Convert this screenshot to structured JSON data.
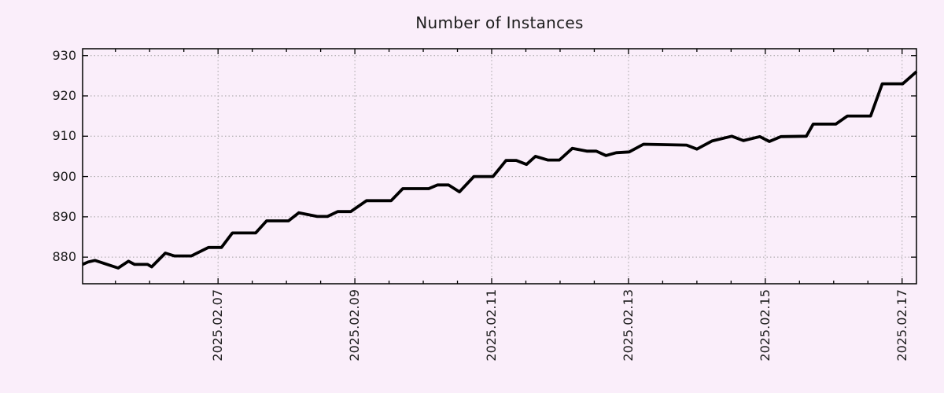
{
  "page": {
    "background": "#faeefa"
  },
  "chart_data": {
    "type": "line",
    "title": "Number of Instances",
    "xlabel": "",
    "ylabel": "",
    "legend": "none",
    "grid": "dotted",
    "x_unit": "days since 2025-02-05 00:00",
    "x_range": [
      0.02,
      12.21
    ],
    "y_range": [
      873.4,
      931.7
    ],
    "y_ticks": [
      880,
      890,
      900,
      910,
      920,
      930
    ],
    "x_major_ticks": [
      {
        "pos": 2,
        "label": "2025.02.07"
      },
      {
        "pos": 4,
        "label": "2025.02.09"
      },
      {
        "pos": 6,
        "label": "2025.02.11"
      },
      {
        "pos": 8,
        "label": "2025.02.13"
      },
      {
        "pos": 10,
        "label": "2025.02.15"
      },
      {
        "pos": 12,
        "label": "2025.02.17"
      }
    ],
    "x_minor_step": 0.5,
    "colors": {
      "background": "#faeefa",
      "line": "#000000",
      "grid": "#a0a0a0",
      "axis": "#000000",
      "text": "#1c1c1c"
    },
    "series": [
      {
        "name": "instances",
        "points": [
          [
            0.02,
            878.2
          ],
          [
            0.1,
            878.8
          ],
          [
            0.2,
            879.2
          ],
          [
            0.38,
            878.2
          ],
          [
            0.54,
            877.3
          ],
          [
            0.69,
            879.0
          ],
          [
            0.78,
            878.2
          ],
          [
            0.97,
            878.2
          ],
          [
            1.03,
            877.6
          ],
          [
            1.23,
            881.0
          ],
          [
            1.36,
            880.3
          ],
          [
            1.61,
            880.3
          ],
          [
            1.86,
            882.4
          ],
          [
            2.05,
            882.4
          ],
          [
            2.21,
            886.0
          ],
          [
            2.55,
            886.0
          ],
          [
            2.71,
            889.0
          ],
          [
            3.03,
            889.0
          ],
          [
            3.18,
            891.0
          ],
          [
            3.45,
            890.1
          ],
          [
            3.6,
            890.1
          ],
          [
            3.75,
            891.3
          ],
          [
            3.94,
            891.3
          ],
          [
            4.17,
            894.0
          ],
          [
            4.53,
            894.0
          ],
          [
            4.7,
            897.0
          ],
          [
            5.08,
            897.0
          ],
          [
            5.21,
            897.9
          ],
          [
            5.37,
            897.9
          ],
          [
            5.53,
            896.2
          ],
          [
            5.74,
            900.0
          ],
          [
            6.02,
            900.0
          ],
          [
            6.21,
            904.0
          ],
          [
            6.36,
            904.0
          ],
          [
            6.51,
            903.0
          ],
          [
            6.64,
            905.0
          ],
          [
            6.82,
            904.1
          ],
          [
            6.99,
            904.1
          ],
          [
            7.18,
            907.0
          ],
          [
            7.39,
            906.3
          ],
          [
            7.53,
            906.3
          ],
          [
            7.67,
            905.2
          ],
          [
            7.82,
            905.9
          ],
          [
            8.01,
            906.1
          ],
          [
            8.22,
            908.0
          ],
          [
            8.85,
            907.8
          ],
          [
            9.0,
            906.8
          ],
          [
            9.22,
            908.8
          ],
          [
            9.51,
            910.0
          ],
          [
            9.68,
            908.9
          ],
          [
            9.92,
            909.9
          ],
          [
            10.06,
            908.7
          ],
          [
            10.23,
            909.9
          ],
          [
            10.6,
            910.0
          ],
          [
            10.7,
            913.0
          ],
          [
            11.03,
            913.0
          ],
          [
            11.2,
            915.0
          ],
          [
            11.54,
            915.0
          ],
          [
            11.71,
            923.0
          ],
          [
            12.01,
            923.0
          ],
          [
            12.21,
            926.0
          ]
        ]
      }
    ]
  }
}
